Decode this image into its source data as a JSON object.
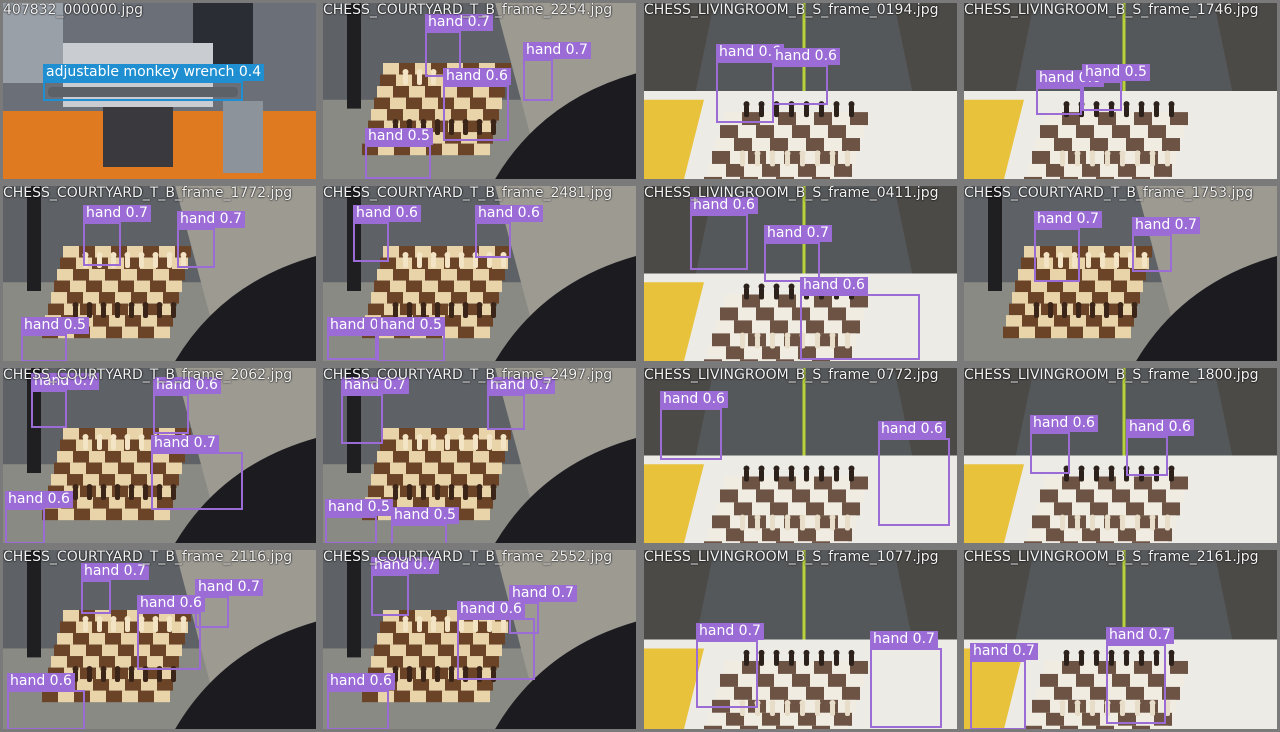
{
  "colors": {
    "hand": "#9b6bd6",
    "wrench": "#1f8fd1",
    "separator": "#7a7a7a"
  },
  "tiles": [
    {
      "filename": "407832_000000.jpg",
      "scene": "workshop",
      "detections": [
        {
          "label": "adjustable monkey wrench 0.4",
          "cls": "wrench"
        }
      ]
    },
    {
      "filename": "CHESS_COURTYARD_T_B_frame_2254.jpg",
      "scene": "courtyard",
      "detections": [
        {
          "label": "hand 0.7",
          "cls": "hand"
        },
        {
          "label": "hand 0.7",
          "cls": "hand"
        },
        {
          "label": "hand 0.6",
          "cls": "hand"
        },
        {
          "label": "hand 0.5",
          "cls": "hand"
        }
      ]
    },
    {
      "filename": "CHESS_LIVINGROOM_B_S_frame_0194.jpg",
      "scene": "livingroom",
      "detections": [
        {
          "label": "hand 0.6",
          "cls": "hand"
        },
        {
          "label": "hand 0.6",
          "cls": "hand"
        }
      ]
    },
    {
      "filename": "CHESS_LIVINGROOM_B_S_frame_1746.jpg",
      "scene": "livingroom",
      "detections": [
        {
          "label": "hand 0.6",
          "cls": "hand"
        },
        {
          "label": "hand 0.5",
          "cls": "hand"
        }
      ]
    },
    {
      "filename": "CHESS_COURTYARD_T_B_frame_1772.jpg",
      "scene": "courtyard",
      "detections": [
        {
          "label": "hand 0.7",
          "cls": "hand"
        },
        {
          "label": "hand 0.7",
          "cls": "hand"
        },
        {
          "label": "hand 0.5",
          "cls": "hand"
        }
      ]
    },
    {
      "filename": "CHESS_COURTYARD_T_B_frame_2481.jpg",
      "scene": "courtyard",
      "detections": [
        {
          "label": "hand 0.6",
          "cls": "hand"
        },
        {
          "label": "hand 0.6",
          "cls": "hand"
        },
        {
          "label": "hand 0.5",
          "cls": "hand"
        },
        {
          "label": "hand 0.5",
          "cls": "hand"
        }
      ]
    },
    {
      "filename": "CHESS_LIVINGROOM_B_S_frame_0411.jpg",
      "scene": "livingroom",
      "detections": [
        {
          "label": "hand 0.6",
          "cls": "hand"
        },
        {
          "label": "hand 0.7",
          "cls": "hand"
        },
        {
          "label": "hand 0.6",
          "cls": "hand"
        }
      ]
    },
    {
      "filename": "CHESS_COURTYARD_T_B_frame_1753.jpg",
      "scene": "courtyard",
      "detections": [
        {
          "label": "hand 0.7",
          "cls": "hand"
        },
        {
          "label": "hand 0.7",
          "cls": "hand"
        }
      ]
    },
    {
      "filename": "CHESS_COURTYARD_T_B_frame_2062.jpg",
      "scene": "courtyard",
      "detections": [
        {
          "label": "hand 0.7",
          "cls": "hand"
        },
        {
          "label": "hand 0.6",
          "cls": "hand"
        },
        {
          "label": "hand 0.7",
          "cls": "hand"
        },
        {
          "label": "hand 0.6",
          "cls": "hand"
        }
      ]
    },
    {
      "filename": "CHESS_COURTYARD_T_B_frame_2497.jpg",
      "scene": "courtyard",
      "detections": [
        {
          "label": "hand 0.7",
          "cls": "hand"
        },
        {
          "label": "hand 0.7",
          "cls": "hand"
        },
        {
          "label": "hand 0.5",
          "cls": "hand"
        },
        {
          "label": "hand 0.5",
          "cls": "hand"
        }
      ]
    },
    {
      "filename": "CHESS_LIVINGROOM_B_S_frame_0772.jpg",
      "scene": "livingroom",
      "detections": [
        {
          "label": "hand 0.6",
          "cls": "hand"
        },
        {
          "label": "hand 0.6",
          "cls": "hand"
        }
      ]
    },
    {
      "filename": "CHESS_LIVINGROOM_B_S_frame_1800.jpg",
      "scene": "livingroom",
      "detections": [
        {
          "label": "hand 0.6",
          "cls": "hand"
        },
        {
          "label": "hand 0.6",
          "cls": "hand"
        }
      ]
    },
    {
      "filename": "CHESS_COURTYARD_T_B_frame_2116.jpg",
      "scene": "courtyard",
      "detections": [
        {
          "label": "hand 0.7",
          "cls": "hand"
        },
        {
          "label": "hand 0.7",
          "cls": "hand"
        },
        {
          "label": "hand 0.6",
          "cls": "hand"
        },
        {
          "label": "hand 0.6",
          "cls": "hand"
        }
      ]
    },
    {
      "filename": "CHESS_COURTYARD_T_B_frame_2552.jpg",
      "scene": "courtyard",
      "detections": [
        {
          "label": "hand 0.7",
          "cls": "hand"
        },
        {
          "label": "hand 0.7",
          "cls": "hand"
        },
        {
          "label": "hand 0.6",
          "cls": "hand"
        },
        {
          "label": "hand 0.6",
          "cls": "hand"
        }
      ]
    },
    {
      "filename": "CHESS_LIVINGROOM_B_S_frame_1077.jpg",
      "scene": "livingroom",
      "detections": [
        {
          "label": "hand 0.7",
          "cls": "hand"
        },
        {
          "label": "hand 0.7",
          "cls": "hand"
        }
      ]
    },
    {
      "filename": "CHESS_LIVINGROOM_B_S_frame_2161.jpg",
      "scene": "livingroom",
      "detections": [
        {
          "label": "hand 0.7",
          "cls": "hand"
        },
        {
          "label": "hand 0.7",
          "cls": "hand"
        }
      ]
    }
  ]
}
